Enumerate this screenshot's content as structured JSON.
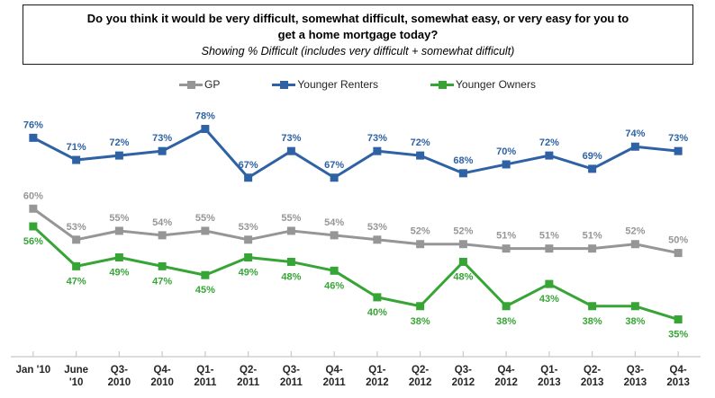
{
  "title": {
    "lines": [
      "Do you think it would be very difficult, somewhat difficult, somewhat easy, or very easy for you to",
      "get a home mortgage today?"
    ],
    "subtitle": "Showing % Difficult (includes very difficult + somewhat difficult)"
  },
  "legend": {
    "items": [
      "GP",
      "Younger Renters",
      "Younger Owners"
    ]
  },
  "colors": {
    "gp": "#969696",
    "younger_renters": "#2E62A4",
    "younger_owners": "#36A536",
    "axis": "#C8C8C8",
    "x_tick_label": "#262626"
  },
  "chart_data": {
    "type": "line",
    "title": "Do you think it would be very difficult, somewhat difficult, somewhat easy, or very easy for you to get a home mortgage today?",
    "subtitle": "Showing % Difficult (includes very difficult + somewhat difficult)",
    "xlabel": "",
    "ylabel": "",
    "ylim": [
      27,
      85
    ],
    "grid": false,
    "legend_position": "top",
    "point_labels_shown": true,
    "label_suffix": "%",
    "categories": [
      "Jan '10",
      "June '10",
      "Q3-2010",
      "Q4-2010",
      "Q1-2011",
      "Q2-2011",
      "Q3-2011",
      "Q4-2011",
      "Q1-2012",
      "Q2-2012",
      "Q3-2012",
      "Q4-2012",
      "Q1-2013",
      "Q2-2013",
      "Q3-2013",
      "Q4-2013"
    ],
    "tick_display": [
      "Jan '10",
      "June\n'10",
      "Q3-\n2010",
      "Q4-\n2010",
      "Q1-\n2011",
      "Q2-\n2011",
      "Q3-\n2011",
      "Q4-\n2011",
      "Q1-\n2012",
      "Q2-\n2012",
      "Q3-\n2012",
      "Q4-\n2012",
      "Q1-\n2013",
      "Q2-\n2013",
      "Q3-\n2013",
      "Q4-\n2013"
    ],
    "series": [
      {
        "name": "GP",
        "color": "#969696",
        "values": [
          60,
          53,
          55,
          54,
          55,
          53,
          55,
          54,
          53,
          52,
          52,
          51,
          51,
          51,
          52,
          50
        ]
      },
      {
        "name": "Younger Renters",
        "color": "#2E62A4",
        "values": [
          76,
          71,
          72,
          73,
          78,
          67,
          73,
          67,
          73,
          72,
          68,
          70,
          72,
          69,
          74,
          73
        ]
      },
      {
        "name": "Younger Owners",
        "color": "#36A536",
        "values": [
          56,
          47,
          49,
          47,
          45,
          49,
          48,
          46,
          40,
          38,
          48,
          38,
          43,
          38,
          38,
          35
        ]
      }
    ]
  }
}
